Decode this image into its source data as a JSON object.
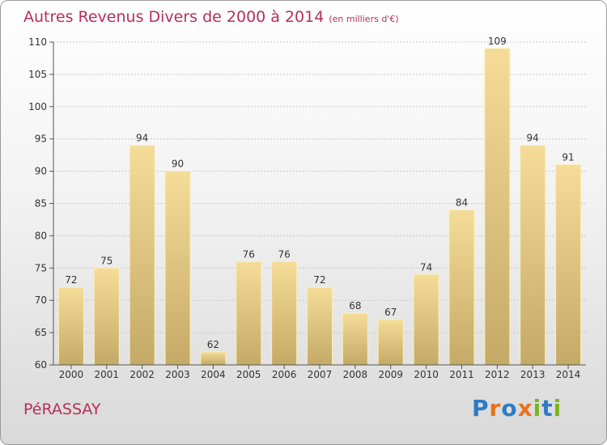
{
  "title": "Autres Revenus Divers de 2000 à 2014",
  "subtitle": "(en milliers d'€)",
  "commune": "PéRASSAY",
  "logo": {
    "text": "Proxiti",
    "letters": [
      {
        "ch": "P",
        "color": "#2e7bc4"
      },
      {
        "ch": "r",
        "color": "#e8731a"
      },
      {
        "ch": "o",
        "color": "#2e7bc4"
      },
      {
        "ch": "x",
        "color": "#e8731a"
      },
      {
        "ch": "i",
        "color": "#7ab51d"
      },
      {
        "ch": "t",
        "color": "#2e7bc4"
      },
      {
        "ch": "i",
        "color": "#7ab51d"
      }
    ]
  },
  "chart_data": {
    "type": "bar",
    "categories": [
      "2000",
      "2001",
      "2002",
      "2003",
      "2004",
      "2005",
      "2006",
      "2007",
      "2008",
      "2009",
      "2010",
      "2011",
      "2012",
      "2013",
      "2014"
    ],
    "values": [
      72,
      75,
      94,
      90,
      62,
      76,
      76,
      72,
      68,
      67,
      74,
      84,
      109,
      94,
      91
    ],
    "ylim": [
      60,
      110
    ],
    "yticks": [
      60,
      65,
      70,
      75,
      80,
      85,
      90,
      95,
      100,
      105,
      110
    ],
    "grid": true,
    "bar_color_top": "#f5dc98",
    "bar_color_bottom": "#c4aa66",
    "title_color": "#b5305a"
  }
}
